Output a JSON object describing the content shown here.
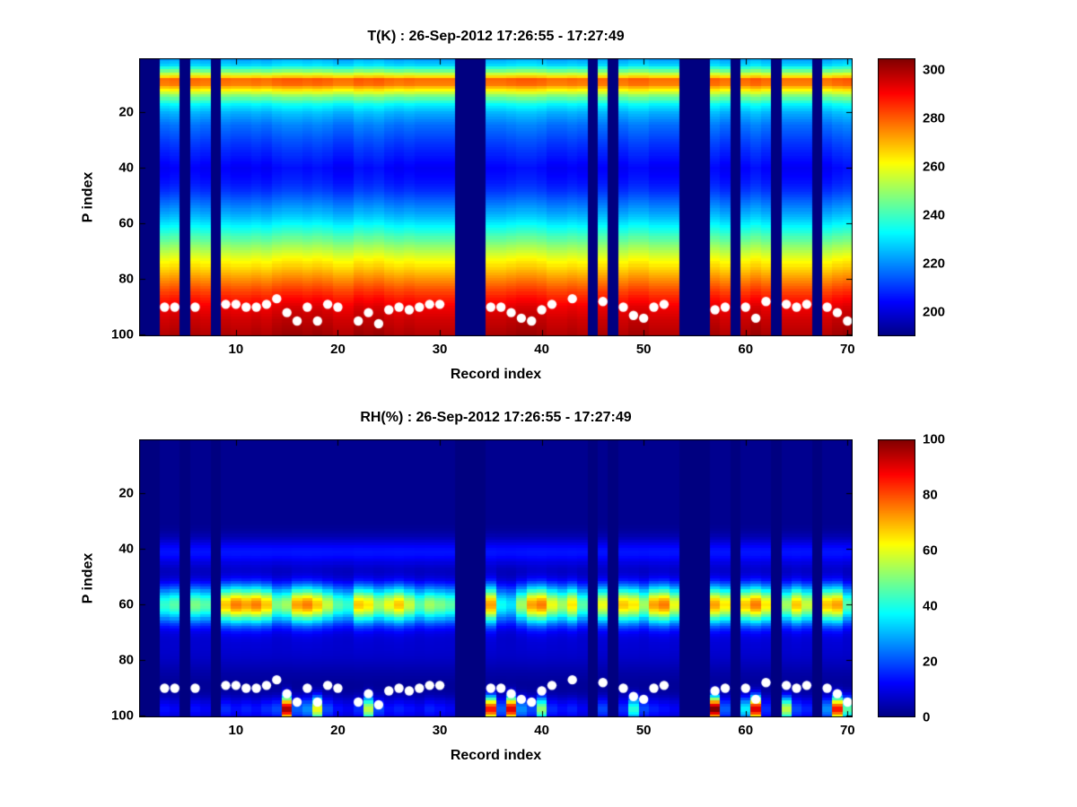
{
  "chart_data": [
    {
      "type": "heatmap",
      "title": "T(K) : 26-Sep-2012 17:26:55 - 17:27:49",
      "xlabel": "Record index",
      "ylabel": "P index",
      "x_range": [
        1,
        70
      ],
      "y_range": [
        1,
        100
      ],
      "y_axis_reversed": true,
      "colormap": "jet",
      "clim": [
        190,
        305
      ],
      "xticks": [
        10,
        20,
        30,
        40,
        50,
        60,
        70
      ],
      "yticks": [
        20,
        40,
        60,
        80,
        100
      ],
      "colorbar_ticks": [
        200,
        220,
        240,
        260,
        280,
        300
      ],
      "profile_p": [
        1,
        3,
        5,
        7,
        8,
        10,
        12,
        14,
        17,
        20,
        25,
        30,
        36,
        40,
        44,
        48,
        53,
        58,
        63,
        68,
        73,
        78,
        82,
        86,
        90,
        95,
        100
      ],
      "profile_value": [
        222,
        228,
        245,
        265,
        278,
        276,
        262,
        248,
        232,
        224,
        216,
        211,
        206,
        203,
        205,
        209,
        217,
        226,
        237,
        249,
        260,
        270,
        278,
        286,
        292,
        296,
        299
      ],
      "column_offset": [
        0,
        0,
        0,
        1,
        0,
        1,
        0,
        0,
        1,
        0,
        0,
        1,
        0,
        2,
        3,
        3,
        2,
        3,
        2,
        0,
        0,
        3,
        2,
        3,
        1,
        0,
        1,
        0,
        0,
        0,
        0,
        0,
        0,
        0,
        1,
        1,
        2,
        3,
        3,
        2,
        0,
        0,
        1,
        0,
        0,
        1,
        0,
        0,
        2,
        2,
        0,
        0,
        0,
        0,
        0,
        0,
        2,
        0,
        0,
        1,
        3,
        1,
        0,
        0,
        0,
        0,
        0,
        0,
        2,
        3
      ],
      "missing_records": [
        1,
        2,
        5,
        8,
        32,
        33,
        34,
        45,
        47,
        54,
        55,
        56,
        59,
        63,
        67
      ],
      "surface_records": [
        3,
        4,
        6,
        9,
        10,
        11,
        12,
        13,
        14,
        15,
        16,
        17,
        18,
        19,
        20,
        22,
        23,
        24,
        25,
        26,
        27,
        28,
        29,
        30,
        35,
        36,
        37,
        38,
        39,
        40,
        41,
        43,
        46,
        48,
        49,
        50,
        51,
        52,
        57,
        58,
        60,
        61,
        62,
        64,
        65,
        66,
        68,
        69,
        70
      ],
      "surface_p": [
        90,
        90,
        90,
        89,
        89,
        90,
        90,
        89,
        87,
        92,
        95,
        90,
        95,
        89,
        90,
        95,
        92,
        96,
        91,
        90,
        91,
        90,
        89,
        89,
        90,
        90,
        92,
        94,
        95,
        91,
        89,
        87,
        88,
        90,
        93,
        94,
        90,
        89,
        91,
        90,
        90,
        94,
        88,
        89,
        90,
        89,
        90,
        92,
        95
      ],
      "surface_marker_color": "#ffffff"
    },
    {
      "type": "heatmap",
      "title": "RH(%) : 26-Sep-2012 17:26:55 - 17:27:49",
      "xlabel": "Record index",
      "ylabel": "P index",
      "x_range": [
        1,
        70
      ],
      "y_range": [
        1,
        100
      ],
      "y_axis_reversed": true,
      "colormap": "jet",
      "clim": [
        0,
        100
      ],
      "xticks": [
        10,
        20,
        30,
        40,
        50,
        60,
        70
      ],
      "yticks": [
        20,
        40,
        60,
        80,
        100
      ],
      "colorbar_ticks": [
        0,
        20,
        40,
        60,
        80,
        100
      ],
      "background": 1.5,
      "main_band": {
        "center": 60,
        "width": 4.5,
        "peak": 66
      },
      "halo_band": {
        "center": 60,
        "width": 9,
        "peak": 8
      },
      "secondary_band": {
        "center": 41,
        "width": 3.5,
        "peak": 12
      },
      "tertiary_band": {
        "center": 77,
        "width": 6,
        "peak": 5
      },
      "bottom_band": {
        "center": 97.5,
        "width": 3
      },
      "band_amp": [
        0,
        0,
        0.55,
        0.6,
        0,
        0.65,
        0.6,
        0,
        0.9,
        1,
        0.95,
        1,
        0.9,
        0.65,
        0.7,
        0.95,
        1,
        0.9,
        0.75,
        0.6,
        0.55,
        0.9,
        0.85,
        0.7,
        0.8,
        0.9,
        0.75,
        0.6,
        0.7,
        0.65,
        0.6,
        0,
        0,
        0,
        0.95,
        0.5,
        0.45,
        0.7,
        0.95,
        1,
        0.8,
        0.7,
        0.85,
        0.6,
        0,
        0.8,
        0,
        0.9,
        0.85,
        0.7,
        0.95,
        1,
        0.8,
        0,
        0,
        0,
        0.95,
        0.85,
        0,
        0.9,
        1,
        0.85,
        0,
        0.7,
        0.9,
        0.75,
        0,
        0.9,
        0.95,
        0.6
      ],
      "bottom_value": [
        0,
        0,
        12,
        10,
        0,
        12,
        10,
        0,
        15,
        12,
        14,
        12,
        15,
        18,
        95,
        20,
        25,
        60,
        18,
        12,
        10,
        15,
        55,
        18,
        12,
        14,
        12,
        10,
        14,
        12,
        10,
        0,
        0,
        0,
        85,
        20,
        90,
        25,
        18,
        50,
        15,
        12,
        14,
        10,
        0,
        18,
        0,
        15,
        40,
        18,
        14,
        12,
        10,
        0,
        0,
        0,
        100,
        20,
        0,
        35,
        90,
        15,
        0,
        55,
        18,
        14,
        0,
        25,
        85,
        45
      ],
      "missing_records": [
        1,
        2,
        5,
        8,
        32,
        33,
        34,
        45,
        47,
        54,
        55,
        56,
        59,
        63,
        67
      ],
      "surface_records": [
        3,
        4,
        6,
        9,
        10,
        11,
        12,
        13,
        14,
        15,
        16,
        17,
        18,
        19,
        20,
        22,
        23,
        24,
        25,
        26,
        27,
        28,
        29,
        30,
        35,
        36,
        37,
        38,
        39,
        40,
        41,
        43,
        46,
        48,
        49,
        50,
        51,
        52,
        57,
        58,
        60,
        61,
        62,
        64,
        65,
        66,
        68,
        69,
        70
      ],
      "surface_p": [
        90,
        90,
        90,
        89,
        89,
        90,
        90,
        89,
        87,
        92,
        95,
        90,
        95,
        89,
        90,
        95,
        92,
        96,
        91,
        90,
        91,
        90,
        89,
        89,
        90,
        90,
        92,
        94,
        95,
        91,
        89,
        87,
        88,
        90,
        93,
        94,
        90,
        89,
        91,
        90,
        90,
        94,
        88,
        89,
        90,
        89,
        90,
        92,
        95
      ],
      "surface_marker_color": "#ffffff"
    }
  ]
}
